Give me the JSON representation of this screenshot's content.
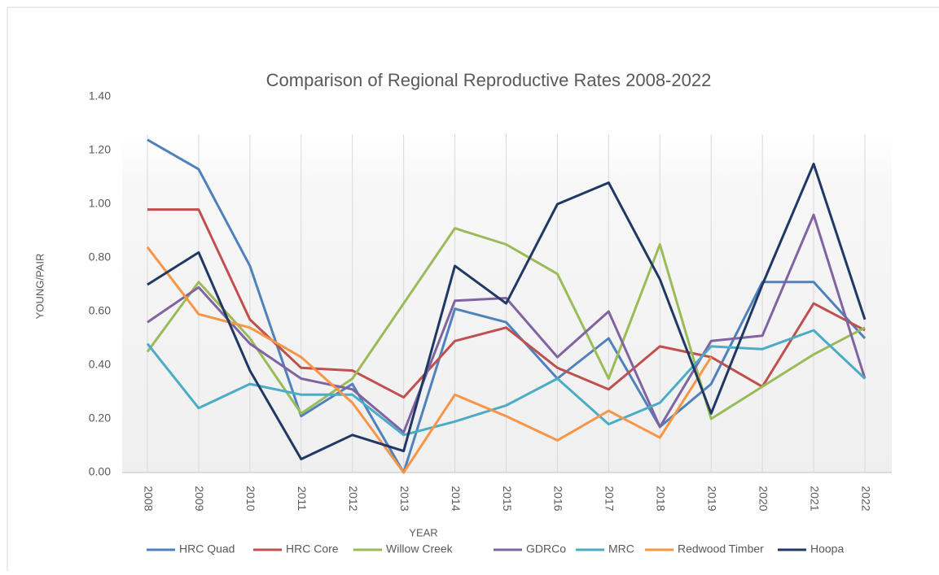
{
  "chart_data": {
    "type": "line",
    "title": "Comparison of Regional Reproductive Rates 2008-2022",
    "x_label": "YEAR",
    "y_label": "YOUNG/PAIR",
    "categories": [
      "2008",
      "2009",
      "2010",
      "2011",
      "2012",
      "2013",
      "2014",
      "2015",
      "2016",
      "2017",
      "2018",
      "2019",
      "2020",
      "2021",
      "2022"
    ],
    "ylim": [
      0,
      1.4
    ],
    "yticks": [
      {
        "value": 0,
        "label": "0.00"
      },
      {
        "value": 0.2,
        "label": "0.20"
      },
      {
        "value": 0.4,
        "label": "0.40"
      },
      {
        "value": 0.6,
        "label": "0.60"
      },
      {
        "value": 0.8,
        "label": "0.80"
      },
      {
        "value": 1.0,
        "label": "1.00"
      },
      {
        "value": 1.2,
        "label": "1.20"
      },
      {
        "value": 1.4,
        "label": "1.40"
      }
    ],
    "grid": true,
    "legend": "bottom",
    "series": [
      {
        "name": "HRC Quad",
        "color": "#4f81bd",
        "values": [
          1.24,
          1.13,
          0.77,
          0.21,
          0.33,
          0.0,
          0.61,
          0.56,
          0.35,
          0.5,
          0.17,
          0.33,
          0.71,
          0.71,
          0.5
        ]
      },
      {
        "name": "HRC Core",
        "color": "#c0504d",
        "values": [
          0.98,
          0.98,
          0.57,
          0.39,
          0.38,
          0.28,
          0.49,
          0.54,
          0.39,
          0.31,
          0.47,
          0.43,
          0.32,
          0.63,
          0.53
        ]
      },
      {
        "name": "Willow Creek",
        "color": "#9bbb59",
        "values": [
          0.45,
          0.71,
          0.5,
          0.22,
          0.35,
          0.63,
          0.91,
          0.85,
          0.74,
          0.35,
          0.85,
          0.2,
          0.32,
          0.44,
          0.54
        ]
      },
      {
        "name": "GDRCo",
        "color": "#8064a2",
        "values": [
          0.56,
          0.69,
          0.48,
          0.35,
          0.31,
          0.15,
          0.64,
          0.65,
          0.43,
          0.6,
          0.17,
          0.49,
          0.51,
          0.96,
          0.35
        ]
      },
      {
        "name": "MRC",
        "color": "#4bacc6",
        "values": [
          0.48,
          0.24,
          0.33,
          0.29,
          0.29,
          0.14,
          0.19,
          0.25,
          0.35,
          0.18,
          0.26,
          0.47,
          0.46,
          0.53,
          0.35
        ]
      },
      {
        "name": "Redwood Timber",
        "color": "#f79646",
        "values": [
          0.84,
          0.59,
          0.54,
          0.43,
          0.26,
          0.0,
          0.29,
          0.21,
          0.12,
          0.23,
          0.13,
          0.43,
          null,
          null,
          null
        ]
      },
      {
        "name": "Hoopa",
        "color": "#1f3864",
        "values": [
          0.7,
          0.82,
          0.38,
          0.05,
          0.14,
          0.08,
          0.77,
          0.63,
          1.0,
          1.08,
          0.72,
          0.22,
          0.7,
          1.15,
          0.57
        ]
      }
    ]
  }
}
